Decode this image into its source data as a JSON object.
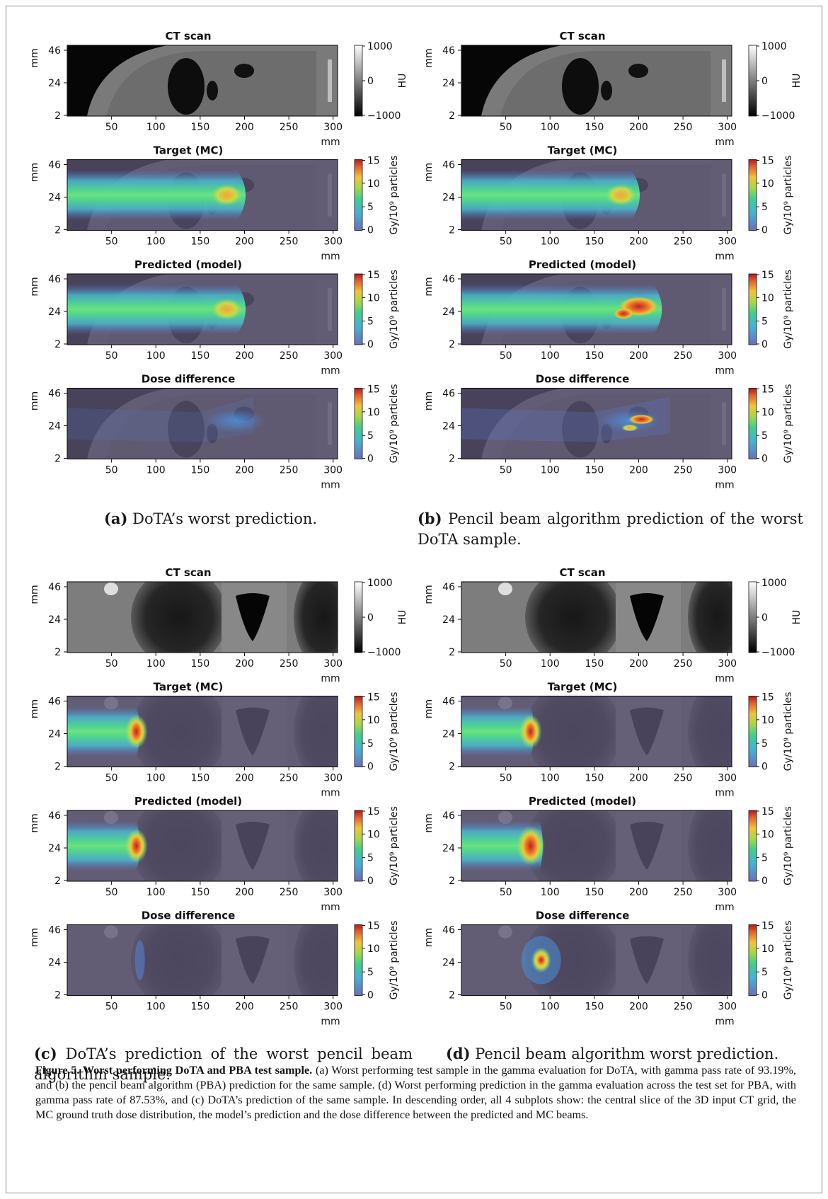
{
  "figure": {
    "label": "Figure 5.",
    "title": "Worst performing DoTA and PBA test sample.",
    "caption": "(a) Worst performing test sample in the gamma evaluation for DoTA, with gamma pass rate of 93.19%, and (b) the pencil beam algorithm (PBA) prediction for the same sample. (d) Worst performing prediction in the gamma evaluation across the test set for PBA, with gamma pass rate of 87.53%, and (c) DoTA’s prediction of the same sample. In descending order, all 4 subplots show: the central slice of the 3D input CT grid, the MC ground truth dose distribution, the model’s prediction and the dose difference between the predicted and MC beams."
  },
  "subfigures": [
    {
      "id": "a",
      "tag": "(a)",
      "caption": "DoTA’s worst prediction.",
      "beam_end_mm": 210,
      "case": 1,
      "variant": "dota"
    },
    {
      "id": "b",
      "tag": "(b)",
      "caption": "Pencil beam algorithm prediction of the worst DoTA sample.",
      "beam_end_mm": 235,
      "case": 1,
      "variant": "pba"
    },
    {
      "id": "c",
      "tag": "(c)",
      "caption": "DoTA’s prediction of the worst pencil beam algorithm sample.",
      "beam_end_mm": 85,
      "case": 2,
      "variant": "dota"
    },
    {
      "id": "d",
      "tag": "(d)",
      "caption": "Pencil beam algorithm worst prediction.",
      "beam_end_mm": 95,
      "case": 2,
      "variant": "pba"
    }
  ],
  "panel_titles": [
    "CT scan",
    "Target (MC)",
    "Predicted (model)",
    "Dose difference"
  ],
  "axes": {
    "y_ticks": [
      "46",
      "24",
      "2"
    ],
    "x_ticks": [
      "50",
      "100",
      "150",
      "200",
      "250",
      "300"
    ],
    "unit": "mm"
  },
  "colorbars": {
    "ct": {
      "ticks": [
        "1000",
        "0",
        "−1000"
      ],
      "label": "HU",
      "range": [
        -1000,
        1000
      ]
    },
    "dose": {
      "ticks": [
        "15",
        "10",
        "5",
        "0"
      ],
      "label": "Gy/10⁹ particles",
      "range": [
        0,
        15
      ]
    }
  },
  "colors": {
    "ct_dark": "#0a0a0a",
    "ct_soft": "#7c7c7c",
    "dose_bg": "#5b5473",
    "dose_hot": "#d7301f"
  }
}
